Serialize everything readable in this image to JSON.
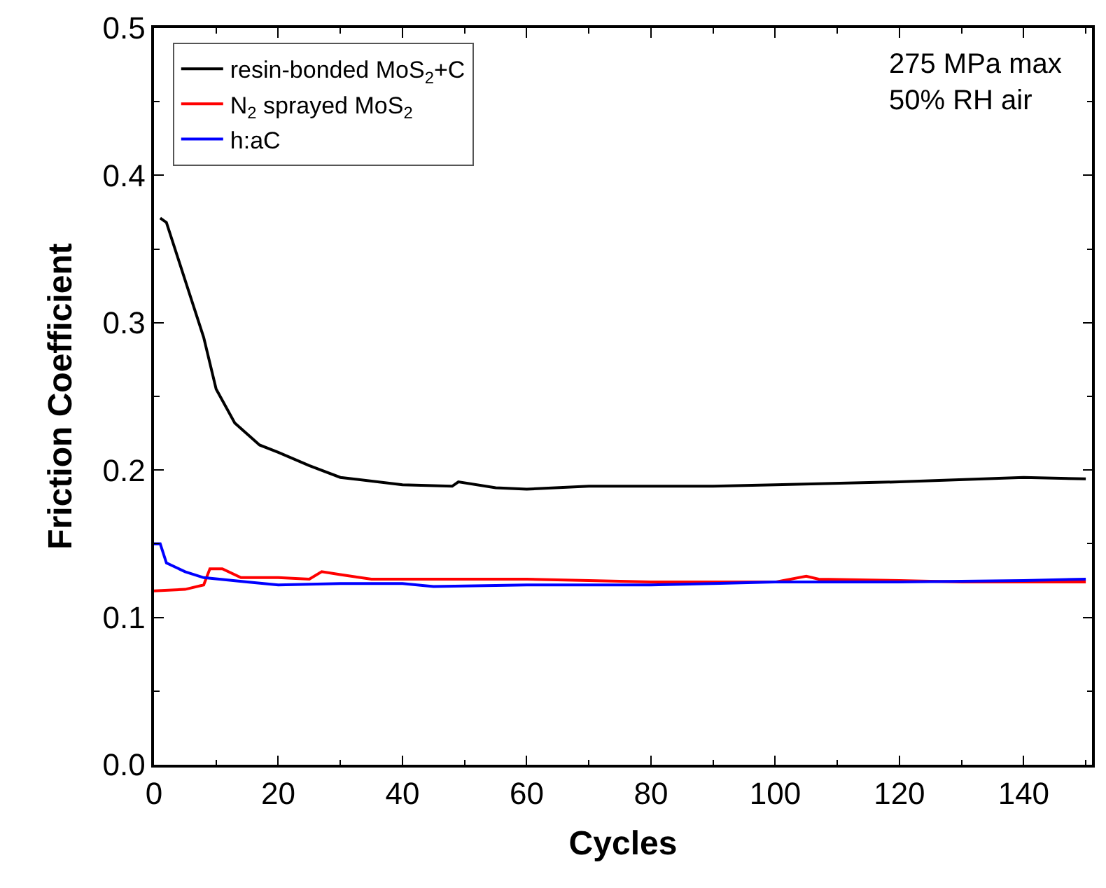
{
  "chart_data": {
    "type": "line",
    "xlabel": "Cycles",
    "ylabel": "Friction Coefficient",
    "xlim": [
      0,
      151
    ],
    "xticks": [
      0,
      20,
      40,
      60,
      80,
      100,
      120,
      140
    ],
    "ylim": [
      0,
      0.5
    ],
    "yticks": [
      {
        "value": 0,
        "label": "0.0"
      },
      0.1,
      0.2,
      0.3,
      0.4,
      0.5
    ],
    "legend": "top left",
    "marker": "none",
    "line_style": "solid",
    "annotations": [
      "275 MPa max",
      "50% RH air"
    ],
    "series": [
      {
        "name": "resin-bonded MoS$_{2}$+C",
        "color": "#000000",
        "x": [
          1,
          2,
          5,
          8,
          10,
          13,
          17,
          20,
          25,
          30,
          40,
          48,
          49,
          55,
          60,
          70,
          80,
          90,
          100,
          120,
          140,
          150
        ],
        "values": [
          0.371,
          0.368,
          0.329,
          0.29,
          0.255,
          0.232,
          0.217,
          0.212,
          0.203,
          0.195,
          0.19,
          0.189,
          0.192,
          0.188,
          0.187,
          0.189,
          0.189,
          0.189,
          0.19,
          0.192,
          0.195,
          0.194
        ]
      },
      {
        "name": "N$_{2}$ sprayed MoS$_{2}$",
        "color": "#ff0000",
        "x": [
          0,
          5,
          8,
          9,
          11,
          14,
          20,
          25,
          27,
          30,
          35,
          40,
          50,
          60,
          70,
          80,
          90,
          100,
          105,
          107,
          120,
          130,
          140,
          150
        ],
        "values": [
          0.118,
          0.119,
          0.122,
          0.133,
          0.133,
          0.127,
          0.127,
          0.126,
          0.131,
          0.129,
          0.126,
          0.126,
          0.126,
          0.126,
          0.125,
          0.124,
          0.124,
          0.124,
          0.128,
          0.126,
          0.125,
          0.124,
          0.124,
          0.124
        ]
      },
      {
        "name": "h:aC",
        "color": "#0000ff",
        "x": [
          0,
          1,
          2,
          5,
          8,
          15,
          20,
          30,
          40,
          45,
          60,
          80,
          90,
          100,
          120,
          140,
          150
        ],
        "values": [
          0.15,
          0.15,
          0.137,
          0.131,
          0.127,
          0.124,
          0.122,
          0.123,
          0.123,
          0.121,
          0.122,
          0.122,
          0.123,
          0.124,
          0.124,
          0.125,
          0.126
        ]
      }
    ]
  }
}
